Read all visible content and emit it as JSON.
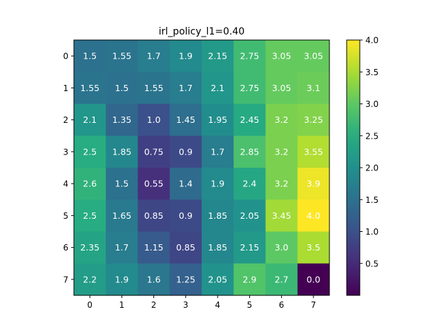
{
  "chart_data": {
    "type": "heatmap",
    "title": "irl_policy_l1=0.40",
    "xlabel": "",
    "ylabel": "",
    "x_ticks": [
      "0",
      "1",
      "2",
      "3",
      "4",
      "5",
      "6",
      "7"
    ],
    "y_ticks": [
      "0",
      "1",
      "2",
      "3",
      "4",
      "5",
      "6",
      "7"
    ],
    "values": [
      [
        1.5,
        1.55,
        1.7,
        1.9,
        2.15,
        2.75,
        3.05,
        3.05
      ],
      [
        1.55,
        1.5,
        1.55,
        1.7,
        2.1,
        2.75,
        3.05,
        3.1
      ],
      [
        2.1,
        1.35,
        1.0,
        1.45,
        1.95,
        2.45,
        3.2,
        3.25
      ],
      [
        2.5,
        1.85,
        0.75,
        0.9,
        1.7,
        2.85,
        3.2,
        3.55
      ],
      [
        2.6,
        1.5,
        0.55,
        1.4,
        1.9,
        2.4,
        3.2,
        3.9
      ],
      [
        2.5,
        1.65,
        0.85,
        0.9,
        1.85,
        2.05,
        3.45,
        4.0
      ],
      [
        2.35,
        1.7,
        1.15,
        0.85,
        1.85,
        2.15,
        3.0,
        3.5
      ],
      [
        2.2,
        1.9,
        1.6,
        1.25,
        2.05,
        2.9,
        2.7,
        0.0
      ]
    ],
    "cell_labels": [
      [
        "1.5",
        "1.55",
        "1.7",
        "1.9",
        "2.15",
        "2.75",
        "3.05",
        "3.05"
      ],
      [
        "1.55",
        "1.5",
        "1.55",
        "1.7",
        "2.1",
        "2.75",
        "3.05",
        "3.1"
      ],
      [
        "2.1",
        "1.35",
        "1.0",
        "1.45",
        "1.95",
        "2.45",
        "3.2",
        "3.25"
      ],
      [
        "2.5",
        "1.85",
        "0.75",
        "0.9",
        "1.7",
        "2.85",
        "3.2",
        "3.55"
      ],
      [
        "2.6",
        "1.5",
        "0.55",
        "1.4",
        "1.9",
        "2.4",
        "3.2",
        "3.9"
      ],
      [
        "2.5",
        "1.65",
        "0.85",
        "0.9",
        "1.85",
        "2.05",
        "3.45",
        "4.0"
      ],
      [
        "2.35",
        "1.7",
        "1.15",
        "0.85",
        "1.85",
        "2.15",
        "3.0",
        "3.5"
      ],
      [
        "2.2",
        "1.9",
        "1.6",
        "1.25",
        "2.05",
        "2.9",
        "2.7",
        "0.0"
      ]
    ],
    "colormap": "viridis",
    "vmin": 0.0,
    "vmax": 4.0,
    "colorbar_ticks": [
      "0.5",
      "1.0",
      "1.5",
      "2.0",
      "2.5",
      "3.0",
      "3.5",
      "4.0"
    ],
    "colorbar_tick_values": [
      0.5,
      1.0,
      1.5,
      2.0,
      2.5,
      3.0,
      3.5,
      4.0
    ],
    "cell_text_color": "#ffffff",
    "grid": false
  }
}
